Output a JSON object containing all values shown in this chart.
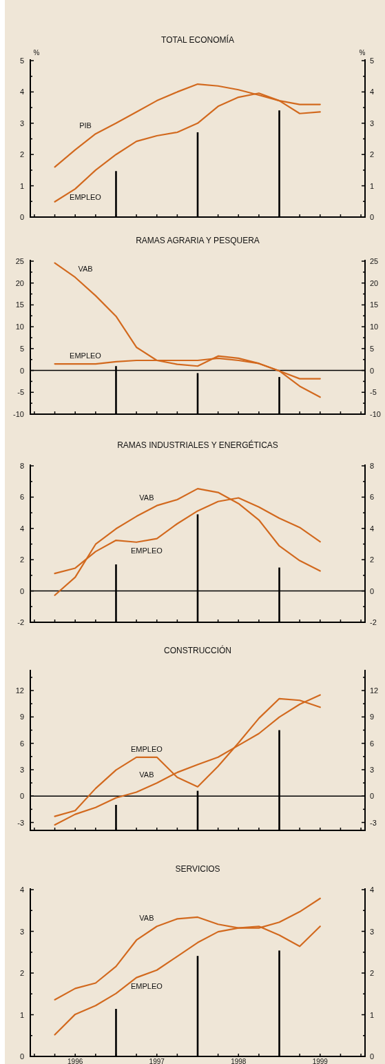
{
  "chart_data": [
    {
      "type": "line",
      "title": "TOTAL ECONOMÍA",
      "ylabel": "%",
      "y2label": "%",
      "tick_labels": "y",
      "xlim": [
        1995.45,
        1999.55
      ],
      "xticks": [
        {
          "value": 1995.5,
          "label": null
        },
        {
          "value": 1995.75,
          "label": null
        },
        {
          "value": 1996,
          "label": null
        },
        {
          "value": 1996.25,
          "label": null
        },
        {
          "value": 1996.5,
          "label": null
        },
        {
          "value": 1996.75,
          "label": null
        },
        {
          "value": 1997,
          "label": null
        },
        {
          "value": 1997.25,
          "label": null
        },
        {
          "value": 1997.5,
          "label": null
        },
        {
          "value": 1997.75,
          "label": null
        },
        {
          "value": 1998,
          "label": null
        },
        {
          "value": 1998.25,
          "label": null
        },
        {
          "value": 1998.5,
          "label": null
        },
        {
          "value": 1998.75,
          "label": null
        },
        {
          "value": 1999,
          "label": null
        },
        {
          "value": 1999.25,
          "label": null
        },
        {
          "value": 1999.5,
          "label": null
        }
      ],
      "ylim": [
        0,
        5
      ],
      "yticks": [
        0,
        {
          "value": 0.5,
          "label": null
        },
        1,
        {
          "value": 1.5,
          "label": null
        },
        2,
        {
          "value": 2.5,
          "label": null
        },
        3,
        {
          "value": 3.5,
          "label": null
        },
        4,
        {
          "value": 4.5,
          "label": null
        },
        5
      ],
      "y2lim": [
        0,
        5
      ],
      "y2ticks": [
        0,
        {
          "value": 0.5,
          "label": null
        },
        1,
        {
          "value": 1.5,
          "label": null
        },
        2,
        {
          "value": 2.5,
          "label": null
        },
        3,
        {
          "value": 3.5,
          "label": null
        },
        4,
        {
          "value": 4.5,
          "label": null
        },
        5
      ],
      "x": [
        1995.75,
        1996,
        1996.25,
        1996.5,
        1996.75,
        1997,
        1997.25,
        1997.5,
        1997.75,
        1998,
        1998.25,
        1998.5,
        1998.75,
        1999
      ],
      "series": [
        {
          "name": "PIB",
          "color": "#d2691e",
          "values": [
            1.6,
            2.15,
            2.66,
            3.0,
            3.36,
            3.72,
            4.0,
            4.25,
            4.19,
            4.07,
            3.9,
            3.72,
            3.6,
            3.6
          ]
        },
        {
          "name": "EMPLEO",
          "color": "#d2691e",
          "values": [
            0.49,
            0.9,
            1.5,
            2.0,
            2.42,
            2.6,
            2.71,
            3.0,
            3.54,
            3.83,
            3.96,
            3.72,
            3.31,
            3.36
          ]
        },
        {
          "type": "bar",
          "color": "#000000",
          "x": [
            1996.5,
            1997.5,
            1998.5
          ],
          "values": [
            1.47,
            2.71,
            3.41
          ]
        }
      ]
    },
    {
      "type": "line",
      "title": "RAMAS AGRARIA Y PESQUERA",
      "tick_labels": "y",
      "xlim": [
        1995.45,
        1999.55
      ],
      "xticks": [
        {
          "value": 1995.5,
          "label": null
        },
        {
          "value": 1995.75,
          "label": null
        },
        {
          "value": 1996,
          "label": null
        },
        {
          "value": 1996.25,
          "label": null
        },
        {
          "value": 1996.5,
          "label": null
        },
        {
          "value": 1996.75,
          "label": null
        },
        {
          "value": 1997,
          "label": null
        },
        {
          "value": 1997.25,
          "label": null
        },
        {
          "value": 1997.5,
          "label": null
        },
        {
          "value": 1997.75,
          "label": null
        },
        {
          "value": 1998,
          "label": null
        },
        {
          "value": 1998.25,
          "label": null
        },
        {
          "value": 1998.5,
          "label": null
        },
        {
          "value": 1998.75,
          "label": null
        },
        {
          "value": 1999,
          "label": null
        },
        {
          "value": 1999.25,
          "label": null
        },
        {
          "value": 1999.5,
          "label": null
        }
      ],
      "ylim": [
        -10,
        25
      ],
      "yticks": [
        -10,
        {
          "value": -7.5,
          "label": null
        },
        -5,
        {
          "value": -2.5,
          "label": null
        },
        0,
        {
          "value": 2.5,
          "label": null
        },
        5,
        {
          "value": 7.5,
          "label": null
        },
        10,
        {
          "value": 12.5,
          "label": null
        },
        15,
        {
          "value": 17.5,
          "label": null
        },
        20,
        {
          "value": 22.5,
          "label": null
        },
        25
      ],
      "y2lim": [
        -10,
        25
      ],
      "y2ticks": [
        -10,
        {
          "value": -7.5,
          "label": null
        },
        -5,
        {
          "value": -2.5,
          "label": null
        },
        0,
        {
          "value": 2.5,
          "label": null
        },
        5,
        {
          "value": 7.5,
          "label": null
        },
        10,
        {
          "value": 12.5,
          "label": null
        },
        15,
        {
          "value": 17.5,
          "label": null
        },
        20,
        {
          "value": 22.5,
          "label": null
        },
        25
      ],
      "ref_lines": [
        {
          "axis": "y",
          "value": 0,
          "color": "#000000"
        }
      ],
      "x": [
        1995.75,
        1996,
        1996.25,
        1996.5,
        1996.75,
        1997,
        1997.25,
        1997.5,
        1997.75,
        1998,
        1998.25,
        1998.5,
        1998.75,
        1999
      ],
      "series": [
        {
          "name": "VAB",
          "color": "#d2691e",
          "values": [
            24.6,
            21.3,
            17.1,
            12.4,
            5.3,
            2.3,
            1.4,
            1.0,
            3.3,
            2.8,
            1.6,
            -0.1,
            -3.6,
            -6.1
          ]
        },
        {
          "name": "EMPLEO",
          "color": "#d2691e",
          "values": [
            1.5,
            1.5,
            1.5,
            2.0,
            2.3,
            2.3,
            2.3,
            2.3,
            2.8,
            2.3,
            1.6,
            -0.1,
            -1.9,
            -1.9
          ]
        },
        {
          "type": "bar",
          "color": "#000000",
          "x": [
            1996.5,
            1997.5,
            1998.5
          ],
          "base": [
            -10,
            -10,
            -10
          ],
          "values": [
            11,
            9.4,
            8.5
          ]
        }
      ]
    },
    {
      "type": "line",
      "title": "RAMAS INDUSTRIALES Y ENERGÉTICAS",
      "tick_labels": "y",
      "xlim": [
        1995.45,
        1999.55
      ],
      "xticks": [
        {
          "value": 1995.5,
          "label": null
        },
        {
          "value": 1995.75,
          "label": null
        },
        {
          "value": 1996,
          "label": null
        },
        {
          "value": 1996.25,
          "label": null
        },
        {
          "value": 1996.5,
          "label": null
        },
        {
          "value": 1996.75,
          "label": null
        },
        {
          "value": 1997,
          "label": null
        },
        {
          "value": 1997.25,
          "label": null
        },
        {
          "value": 1997.5,
          "label": null
        },
        {
          "value": 1997.75,
          "label": null
        },
        {
          "value": 1998,
          "label": null
        },
        {
          "value": 1998.25,
          "label": null
        },
        {
          "value": 1998.5,
          "label": null
        },
        {
          "value": 1998.75,
          "label": null
        },
        {
          "value": 1999,
          "label": null
        },
        {
          "value": 1999.25,
          "label": null
        },
        {
          "value": 1999.5,
          "label": null
        }
      ],
      "ylim": [
        -2,
        8
      ],
      "yticks": [
        -2,
        {
          "value": -1,
          "label": null
        },
        0,
        {
          "value": 1,
          "label": null
        },
        2,
        {
          "value": 3,
          "label": null
        },
        4,
        {
          "value": 5,
          "label": null
        },
        6,
        {
          "value": 7,
          "label": null
        },
        8
      ],
      "y2lim": [
        -2,
        8
      ],
      "y2ticks": [
        -2,
        {
          "value": -1,
          "label": null
        },
        0,
        {
          "value": 1,
          "label": null
        },
        2,
        {
          "value": 3,
          "label": null
        },
        4,
        {
          "value": 5,
          "label": null
        },
        6,
        {
          "value": 7,
          "label": null
        },
        8
      ],
      "ref_lines": [
        {
          "axis": "y",
          "value": 0,
          "color": "#000000"
        }
      ],
      "x": [
        1995.75,
        1996,
        1996.25,
        1996.5,
        1996.75,
        1997,
        1997.25,
        1997.5,
        1997.75,
        1998,
        1998.25,
        1998.5,
        1998.75,
        1999
      ],
      "series": [
        {
          "name": "VAB",
          "color": "#d2691e",
          "values": [
            -0.27,
            0.88,
            2.99,
            3.98,
            4.77,
            5.46,
            5.84,
            6.54,
            6.3,
            5.59,
            4.54,
            2.88,
            1.94,
            1.28
          ]
        },
        {
          "name": "EMPLEO",
          "color": "#d2691e",
          "values": [
            1.12,
            1.46,
            2.52,
            3.24,
            3.12,
            3.35,
            4.3,
            5.12,
            5.72,
            5.95,
            5.37,
            4.65,
            4.06,
            3.15
          ]
        },
        {
          "type": "bar",
          "color": "#000000",
          "x": [
            1996.5,
            1997.5,
            1998.5
          ],
          "base": [
            -2,
            -2,
            -2
          ],
          "values": [
            3.7,
            6.9,
            3.5
          ]
        }
      ]
    },
    {
      "type": "line",
      "title": "CONSTRUCCIÓN",
      "tick_labels": "y",
      "xlim": [
        1995.45,
        1999.55
      ],
      "xticks": [
        {
          "value": 1995.5,
          "label": null
        },
        {
          "value": 1995.75,
          "label": null
        },
        {
          "value": 1996,
          "label": null
        },
        {
          "value": 1996.25,
          "label": null
        },
        {
          "value": 1996.5,
          "label": null
        },
        {
          "value": 1996.75,
          "label": null
        },
        {
          "value": 1997,
          "label": null
        },
        {
          "value": 1997.25,
          "label": null
        },
        {
          "value": 1997.5,
          "label": null
        },
        {
          "value": 1997.75,
          "label": null
        },
        {
          "value": 1998,
          "label": null
        },
        {
          "value": 1998.25,
          "label": null
        },
        {
          "value": 1998.5,
          "label": null
        },
        {
          "value": 1998.75,
          "label": null
        },
        {
          "value": 1999,
          "label": null
        },
        {
          "value": 1999.25,
          "label": null
        },
        {
          "value": 1999.5,
          "label": null
        }
      ],
      "ylim": [
        -3.9,
        14.2
      ],
      "yticks": [
        -3,
        {
          "value": -1.5,
          "label": null
        },
        0,
        {
          "value": 1.5,
          "label": null
        },
        3,
        {
          "value": 4.5,
          "label": null
        },
        6,
        {
          "value": 7.5,
          "label": null
        },
        9,
        {
          "value": 10.5,
          "label": null
        },
        12,
        {
          "value": 13.5,
          "label": null
        }
      ],
      "y2lim": [
        -3.9,
        14.2
      ],
      "y2ticks": [
        -3,
        {
          "value": -1.5,
          "label": null
        },
        0,
        {
          "value": 1.5,
          "label": null
        },
        3,
        {
          "value": 4.5,
          "label": null
        },
        6,
        {
          "value": 7.5,
          "label": null
        },
        9,
        {
          "value": 10.5,
          "label": null
        },
        12,
        {
          "value": 13.5,
          "label": null
        }
      ],
      "ref_lines": [
        {
          "axis": "y",
          "value": 0,
          "color": "#000000"
        }
      ],
      "x": [
        1995.75,
        1996,
        1996.25,
        1996.5,
        1996.75,
        1997,
        1997.25,
        1997.5,
        1997.75,
        1998,
        1998.25,
        1998.5,
        1998.75,
        1999
      ],
      "series": [
        {
          "name": "EMPLEO",
          "color": "#d2691e",
          "values": [
            -2.3,
            -1.65,
            0.87,
            2.97,
            4.42,
            4.42,
            2.13,
            1.06,
            3.39,
            6.05,
            8.84,
            11.08,
            10.89,
            10.1
          ]
        },
        {
          "name": "VAB",
          "color": "#d2691e",
          "values": [
            -3.27,
            -2.07,
            -1.29,
            -0.2,
            0.45,
            1.48,
            2.69,
            3.58,
            4.42,
            5.77,
            7.11,
            8.98,
            10.44,
            11.5
          ]
        },
        {
          "type": "bar",
          "color": "#000000",
          "x": [
            1996.5,
            1997.5,
            1998.5
          ],
          "base": [
            -3.9,
            -3.9,
            -3.9
          ],
          "values": [
            2.9,
            4.5,
            11.4
          ]
        }
      ]
    },
    {
      "type": "line",
      "title": "SERVICIOS",
      "xlim": [
        1995.45,
        1999.55
      ],
      "xticks": [
        {
          "value": 1995.5,
          "label": null
        },
        {
          "value": 1995.75,
          "label": null
        },
        {
          "value": 1996,
          "label": "1996"
        },
        {
          "value": 1996.25,
          "label": null
        },
        {
          "value": 1996.5,
          "label": null
        },
        {
          "value": 1996.75,
          "label": null
        },
        {
          "value": 1997,
          "label": "1997"
        },
        {
          "value": 1997.25,
          "label": null
        },
        {
          "value": 1997.5,
          "label": null
        },
        {
          "value": 1997.75,
          "label": null
        },
        {
          "value": 1998,
          "label": "1998"
        },
        {
          "value": 1998.25,
          "label": null
        },
        {
          "value": 1998.5,
          "label": null
        },
        {
          "value": 1998.75,
          "label": null
        },
        {
          "value": 1999,
          "label": "1999"
        },
        {
          "value": 1999.25,
          "label": null
        },
        {
          "value": 1999.5,
          "label": null
        }
      ],
      "ylim": [
        0,
        4
      ],
      "yticks": [
        0,
        {
          "value": 0.5,
          "label": null
        },
        1,
        {
          "value": 1.5,
          "label": null
        },
        2,
        {
          "value": 2.5,
          "label": null
        },
        3,
        {
          "value": 3.5,
          "label": null
        },
        4
      ],
      "y2lim": [
        0,
        4
      ],
      "y2ticks": [
        0,
        {
          "value": 0.5,
          "label": null
        },
        1,
        {
          "value": 1.5,
          "label": null
        },
        2,
        {
          "value": 2.5,
          "label": null
        },
        3,
        {
          "value": 3.5,
          "label": null
        },
        4
      ],
      "x": [
        1995.75,
        1996,
        1996.25,
        1996.5,
        1996.75,
        1997,
        1997.25,
        1997.5,
        1997.75,
        1998,
        1998.25,
        1998.5,
        1998.75,
        1999
      ],
      "series": [
        {
          "name": "VAB",
          "color": "#d2691e",
          "values": [
            1.36,
            1.63,
            1.76,
            2.16,
            2.79,
            3.12,
            3.3,
            3.34,
            3.17,
            3.08,
            3.12,
            2.91,
            2.64,
            3.12
          ]
        },
        {
          "name": "EMPLEO",
          "color": "#d2691e",
          "values": [
            0.52,
            1.01,
            1.22,
            1.51,
            1.89,
            2.07,
            2.4,
            2.73,
            2.99,
            3.08,
            3.08,
            3.22,
            3.47,
            3.79
          ]
        },
        {
          "type": "bar",
          "color": "#000000",
          "x": [
            1996.5,
            1997.5,
            1998.5
          ],
          "values": [
            1.14,
            2.41,
            2.54
          ]
        }
      ]
    }
  ]
}
